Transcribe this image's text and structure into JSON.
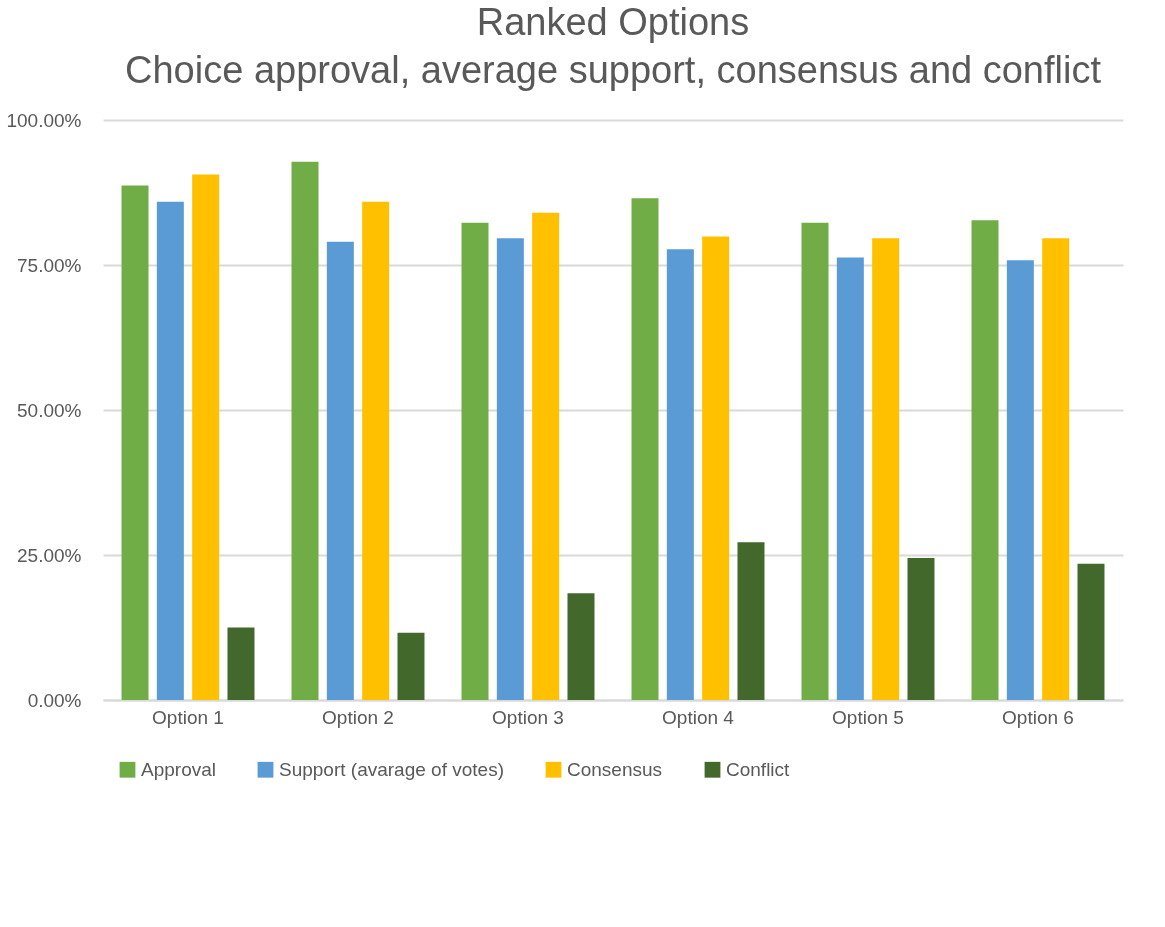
{
  "chart_data": {
    "type": "bar",
    "title": "Ranked Options",
    "subtitle": "Choice approval, average support, consensus and conflict",
    "categories": [
      "Option 1",
      "Option 2",
      "Option 3",
      "Option 4",
      "Option 5",
      "Option 6"
    ],
    "series": [
      {
        "name": "Approval",
        "color": "#70ad47",
        "values": [
          88.7,
          92.8,
          82.3,
          86.5,
          82.3,
          82.7
        ]
      },
      {
        "name": "Support (avarage of votes)",
        "color": "#5b9bd5",
        "values": [
          85.9,
          79.0,
          79.6,
          77.7,
          76.3,
          75.8
        ]
      },
      {
        "name": "Consensus",
        "color": "#ffc000",
        "values": [
          90.6,
          85.9,
          84.0,
          79.9,
          79.6,
          79.6
        ]
      },
      {
        "name": "Conflict",
        "color": "#43682b",
        "values": [
          12.5,
          11.6,
          18.4,
          27.2,
          24.5,
          23.5
        ]
      }
    ],
    "ylim": [
      0,
      100
    ],
    "yticks": [
      {
        "value": 0,
        "label": "0.00%"
      },
      {
        "value": 25,
        "label": "25.00%"
      },
      {
        "value": 50,
        "label": "50.00%"
      },
      {
        "value": 75,
        "label": "75.00%"
      },
      {
        "value": 100,
        "label": "100.00%"
      }
    ],
    "grid": "y",
    "legend": "bottom"
  }
}
